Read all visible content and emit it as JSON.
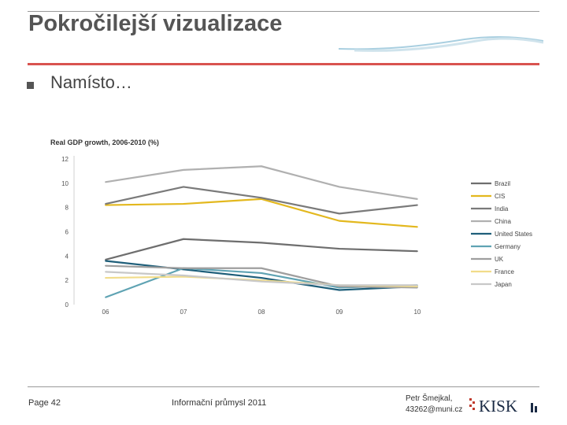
{
  "slide": {
    "title": "Pokročilejší vizualizace",
    "bullet": "Namísto…"
  },
  "footer": {
    "page": "Page 42",
    "course": "Informační průmysl 2011",
    "author_line1": "Petr Šmejkal,",
    "author_line2": "43262@muni.cz",
    "logo_text": "KISK"
  },
  "colors": {
    "accent_rule": "#d9534f",
    "title_text": "#555555"
  },
  "chart_data": {
    "type": "line",
    "title": "Real GDP growth, 2006-2010 (%)",
    "categories": [
      "06",
      "07",
      "08",
      "09",
      "10"
    ],
    "ylim": [
      0,
      12
    ],
    "yticks": [
      0,
      2,
      4,
      6,
      8,
      10,
      12
    ],
    "legend_position": "right",
    "grid": false,
    "series": [
      {
        "name": "Brazil",
        "color": "#6e6e6e",
        "values": [
          3.7,
          5.4,
          5.1,
          4.6,
          4.4
        ]
      },
      {
        "name": "CIS",
        "color": "#e3b81e",
        "values": [
          8.2,
          8.3,
          8.7,
          6.9,
          6.4
        ]
      },
      {
        "name": "India",
        "color": "#7a7a7a",
        "values": [
          8.3,
          9.7,
          8.8,
          7.5,
          8.2
        ]
      },
      {
        "name": "China",
        "color": "#b0b0b0",
        "values": [
          10.1,
          11.1,
          11.4,
          9.7,
          8.7
        ]
      },
      {
        "name": "United States",
        "color": "#1f5f7a",
        "values": [
          3.6,
          2.9,
          2.2,
          1.2,
          1.5
        ]
      },
      {
        "name": "Germany",
        "color": "#5fa3b3",
        "values": [
          0.6,
          3.0,
          2.6,
          1.4,
          1.6
        ]
      },
      {
        "name": "UK",
        "color": "#9e9e9e",
        "values": [
          3.2,
          3.0,
          3.0,
          1.5,
          1.4
        ]
      },
      {
        "name": "France",
        "color": "#f1dc8a",
        "values": [
          2.2,
          2.3,
          2.0,
          1.6,
          1.5
        ]
      },
      {
        "name": "Japan",
        "color": "#c8c8c8",
        "values": [
          2.7,
          2.4,
          1.9,
          1.6,
          1.6
        ]
      }
    ]
  }
}
